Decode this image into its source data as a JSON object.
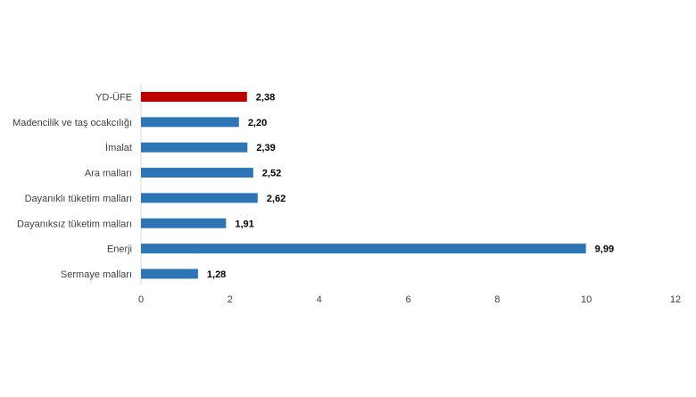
{
  "chart_data": {
    "type": "bar",
    "orientation": "horizontal",
    "title": "",
    "xlabel": "",
    "ylabel": "",
    "categories": [
      "YD-ÜFE",
      "Madencilik ve taş ocakcılığı",
      "İmalat",
      "Ara malları",
      "Dayanıklı tüketim malları",
      "Dayanıksız tüketim malları",
      "Enerji",
      "Sermaye malları"
    ],
    "values": [
      2.38,
      2.2,
      2.39,
      2.52,
      2.62,
      1.91,
      9.99,
      1.28
    ],
    "value_labels": [
      "2,38",
      "2,20",
      "2,39",
      "2,52",
      "2,62",
      "1,91",
      "9,99",
      "1,28"
    ],
    "highlight_index": 0,
    "xlim": [
      0,
      12
    ],
    "x_ticks": [
      0,
      2,
      4,
      6,
      8,
      10,
      12
    ],
    "x_tick_labels": [
      "0",
      "2",
      "4",
      "6",
      "8",
      "10",
      "12"
    ],
    "grid": false,
    "legend": "none",
    "colors": {
      "bar": "#2e75b6",
      "highlight": "#c00000",
      "axis": "#d9d9d9",
      "text": "#404040",
      "value_text": "#000000"
    }
  }
}
